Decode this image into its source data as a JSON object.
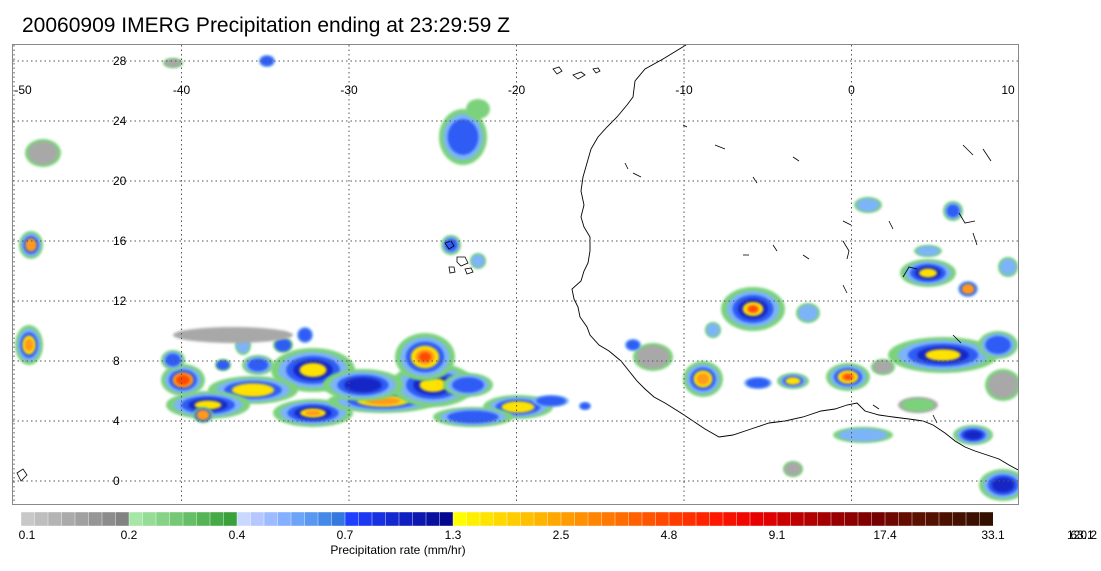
{
  "title": "20060909 IMERG Precipitation ending at 23:29:59 Z",
  "map": {
    "lon_range": [
      -50,
      10
    ],
    "lat_range": [
      -0.5,
      29.5
    ],
    "lon_labels": [
      "-50",
      "-40",
      "-30",
      "-20",
      "-10",
      "0",
      "10"
    ],
    "lat_labels": [
      "28",
      "24",
      "20",
      "16",
      "12",
      "8",
      "4",
      "0"
    ],
    "gridline_style": "dotted",
    "features": [
      "West African coastline",
      "precipitation cells along ITCZ"
    ]
  },
  "colorbar": {
    "title": "Precipitation rate (mm/hr)",
    "tick_labels": [
      "0.1",
      "0.2",
      "0.4",
      "0.7",
      "1.3",
      "2.5",
      "4.8",
      "9.1",
      "17.4",
      "33.1",
      "63.1",
      "120.2"
    ],
    "colors": [
      "#c8c8c8",
      "#bebebe",
      "#b4b4b4",
      "#aaaaaa",
      "#a0a0a0",
      "#969696",
      "#8c8c8c",
      "#828282",
      "#a6e6a6",
      "#96dc96",
      "#86d286",
      "#76c876",
      "#66be66",
      "#56b456",
      "#46aa46",
      "#3aa03a",
      "#c8d8ff",
      "#b4c8ff",
      "#9cbcff",
      "#84b0ff",
      "#6ca4f8",
      "#5898f0",
      "#4488e8",
      "#3478e0",
      "#2040ff",
      "#1c38f0",
      "#1830e0",
      "#1428d0",
      "#1020c0",
      "#0c18b0",
      "#0810a0",
      "#040890",
      "#ffff00",
      "#fff000",
      "#ffe400",
      "#ffd800",
      "#ffcc00",
      "#ffc000",
      "#ffb400",
      "#ffa800",
      "#ff9c00",
      "#ff9000",
      "#ff8400",
      "#ff7800",
      "#ff6c00",
      "#ff6000",
      "#ff5400",
      "#ff4800",
      "#ff3c00",
      "#ff3000",
      "#ff2400",
      "#ff1800",
      "#f81000",
      "#f00800",
      "#e80000",
      "#e00000",
      "#c80000",
      "#bc0000",
      "#b00000",
      "#a40000",
      "#980000",
      "#8c0000",
      "#800000",
      "#740000",
      "#6c0800",
      "#640c00",
      "#5c1000",
      "#541000",
      "#4c1000",
      "#441000",
      "#3c1000",
      "#341000"
    ]
  }
}
